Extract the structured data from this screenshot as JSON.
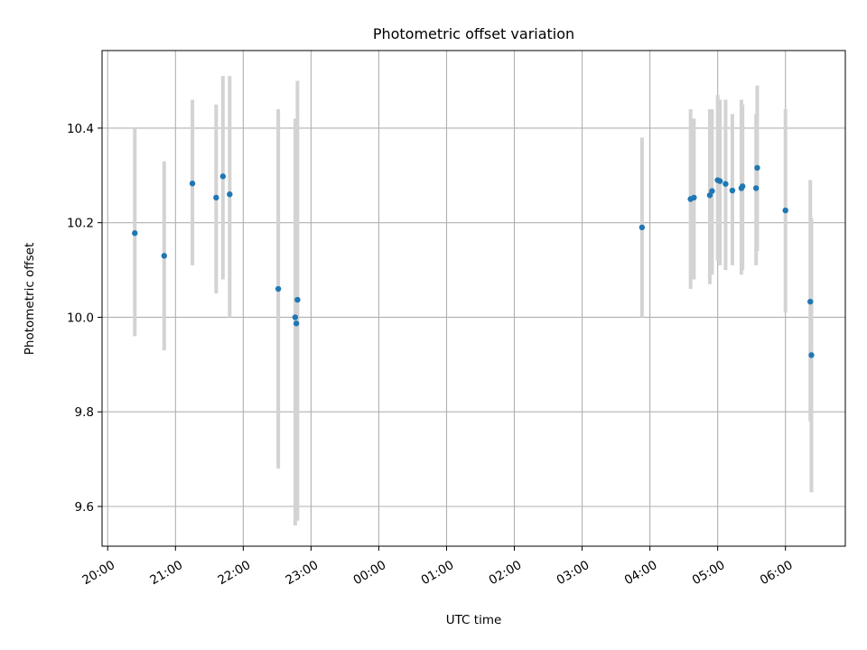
{
  "chart_data": {
    "type": "scatter",
    "title": "Photometric offset variation",
    "xlabel": "UTC time",
    "ylabel": "Photometric offset",
    "x_tick_labels": [
      "20:00",
      "21:00",
      "22:00",
      "23:00",
      "00:00",
      "01:00",
      "02:00",
      "03:00",
      "04:00",
      "05:00",
      "06:00"
    ],
    "y_tick_labels": [
      "9.6",
      "9.8",
      "10.0",
      "10.2",
      "10.4"
    ],
    "x_unit": "UTC time (hours after 20:00)",
    "xlim": [
      "19:55",
      "06:53"
    ],
    "ylim": [
      9.516,
      10.564
    ],
    "grid": true,
    "colors": {
      "marker": "#1f77b4",
      "errorbar": "#d3d3d3",
      "grid": "#b0b0b0"
    },
    "points": [
      {
        "x": "20:24",
        "y": 10.178,
        "lo": 9.96,
        "hi": 10.4
      },
      {
        "x": "20:50",
        "y": 10.13,
        "lo": 9.93,
        "hi": 10.33
      },
      {
        "x": "21:15",
        "y": 10.283,
        "lo": 10.11,
        "hi": 10.46
      },
      {
        "x": "21:36",
        "y": 10.253,
        "lo": 10.05,
        "hi": 10.45
      },
      {
        "x": "21:42",
        "y": 10.298,
        "lo": 10.08,
        "hi": 10.51
      },
      {
        "x": "21:48",
        "y": 10.26,
        "lo": 10.0,
        "hi": 10.51
      },
      {
        "x": "22:31",
        "y": 10.06,
        "lo": 9.68,
        "hi": 10.44
      },
      {
        "x": "22:46",
        "y": 10.0,
        "lo": 9.56,
        "hi": 10.42
      },
      {
        "x": "22:47",
        "y": 9.987,
        "lo": 9.57,
        "hi": 10.4
      },
      {
        "x": "22:48",
        "y": 10.037,
        "lo": 9.57,
        "hi": 10.5
      },
      {
        "x": "03:53",
        "y": 10.19,
        "lo": 10.0,
        "hi": 10.38
      },
      {
        "x": "04:36",
        "y": 10.25,
        "lo": 10.06,
        "hi": 10.44
      },
      {
        "x": "04:39",
        "y": 10.253,
        "lo": 10.08,
        "hi": 10.42
      },
      {
        "x": "04:53",
        "y": 10.258,
        "lo": 10.07,
        "hi": 10.44
      },
      {
        "x": "04:55",
        "y": 10.267,
        "lo": 10.09,
        "hi": 10.44
      },
      {
        "x": "05:00",
        "y": 10.29,
        "lo": 10.12,
        "hi": 10.47
      },
      {
        "x": "05:02",
        "y": 10.288,
        "lo": 10.11,
        "hi": 10.46
      },
      {
        "x": "05:07",
        "y": 10.282,
        "lo": 10.1,
        "hi": 10.46
      },
      {
        "x": "05:13",
        "y": 10.268,
        "lo": 10.11,
        "hi": 10.43
      },
      {
        "x": "05:21",
        "y": 10.273,
        "lo": 10.09,
        "hi": 10.46
      },
      {
        "x": "05:22",
        "y": 10.277,
        "lo": 10.1,
        "hi": 10.45
      },
      {
        "x": "05:34",
        "y": 10.273,
        "lo": 10.11,
        "hi": 10.43
      },
      {
        "x": "05:35",
        "y": 10.316,
        "lo": 10.14,
        "hi": 10.49
      },
      {
        "x": "06:00",
        "y": 10.226,
        "lo": 10.01,
        "hi": 10.44
      },
      {
        "x": "06:22",
        "y": 10.033,
        "lo": 9.78,
        "hi": 10.29
      },
      {
        "x": "06:23",
        "y": 9.92,
        "lo": 9.63,
        "hi": 10.21
      }
    ]
  }
}
